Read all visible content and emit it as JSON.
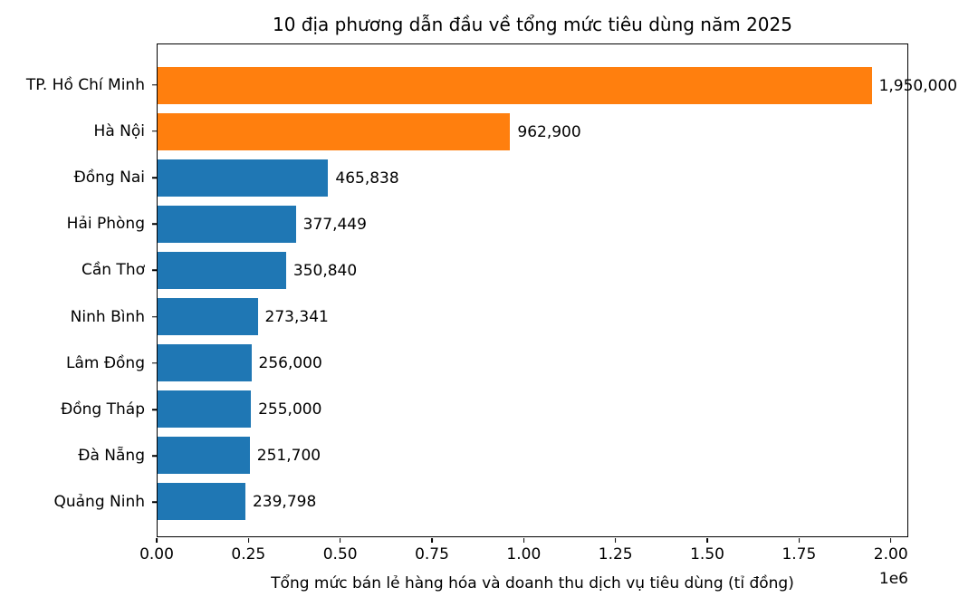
{
  "chart_data": {
    "type": "bar",
    "orientation": "horizontal",
    "title": "10 địa phương dẫn đầu về tổng mức tiêu dùng năm 2025",
    "xlabel": "Tổng mức bán lẻ hàng hóa và doanh thu dịch vụ tiêu dùng (tỉ đồng)",
    "ylabel": "",
    "categories": [
      "TP. Hồ Chí Minh",
      "Hà Nội",
      "Đồng Nai",
      "Hải Phòng",
      "Cần Thơ",
      "Ninh Bình",
      "Lâm Đồng",
      "Đồng Tháp",
      "Đà Nẵng",
      "Quảng Ninh"
    ],
    "values": [
      1950000,
      962900,
      465838,
      377449,
      350840,
      273341,
      256000,
      255000,
      251700,
      239798
    ],
    "value_labels": [
      "1,950,000",
      "962,900",
      "465,838",
      "377,449",
      "350,840",
      "273,341",
      "256,000",
      "255,000",
      "251,700",
      "239,798"
    ],
    "bar_colors": [
      "#ff7f0e",
      "#ff7f0e",
      "#1f77b4",
      "#1f77b4",
      "#1f77b4",
      "#1f77b4",
      "#1f77b4",
      "#1f77b4",
      "#1f77b4",
      "#1f77b4"
    ],
    "highlight_color": "#ff7f0e",
    "base_color": "#1f77b4",
    "xlim": [
      0,
      2047500
    ],
    "xticks": [
      0,
      250000,
      500000,
      750000,
      1000000,
      1250000,
      1500000,
      1750000,
      2000000
    ],
    "xtick_labels": [
      "0.00",
      "0.25",
      "0.50",
      "0.75",
      "1.00",
      "1.25",
      "1.50",
      "1.75",
      "2.00"
    ],
    "offset_text": "1e6",
    "grid": false,
    "legend": null
  }
}
